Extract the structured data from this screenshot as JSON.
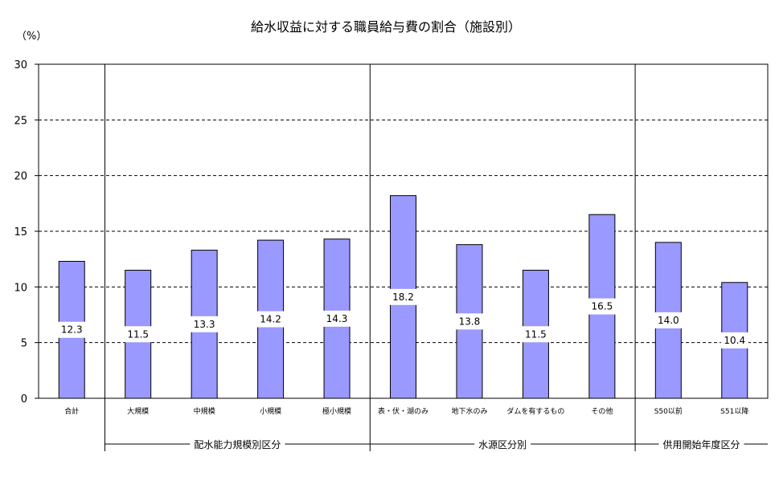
{
  "chart_data": {
    "type": "bar",
    "title": "給水収益に対する職員給与費の割合（施設別）",
    "unit_label": "（%）",
    "ylim": [
      0,
      30
    ],
    "yticks": [
      0,
      5,
      10,
      15,
      20,
      25,
      30
    ],
    "grid": "horizontal-dashed",
    "bar_color": "#9999ff",
    "categories": [
      "合計",
      "大規模",
      "中規模",
      "小規模",
      "極小規模",
      "表・伏・湖のみ",
      "地下水のみ",
      "ダムを有するもの",
      "その他",
      "S50以前",
      "S51以降"
    ],
    "values": [
      12.3,
      11.5,
      13.3,
      14.2,
      14.3,
      18.2,
      13.8,
      11.5,
      16.5,
      14.0,
      10.4
    ],
    "value_labels": [
      "12.3",
      "11.5",
      "13.3",
      "14.2",
      "14.3",
      "18.2",
      "13.8",
      "11.5",
      "16.5",
      "14.0",
      "10.4"
    ],
    "groups": [
      {
        "label": "配水能力規模別区分",
        "start": 1,
        "end": 4
      },
      {
        "label": "水源区分別",
        "start": 5,
        "end": 8
      },
      {
        "label": "供用開始年度区分",
        "start": 9,
        "end": 10
      }
    ]
  }
}
